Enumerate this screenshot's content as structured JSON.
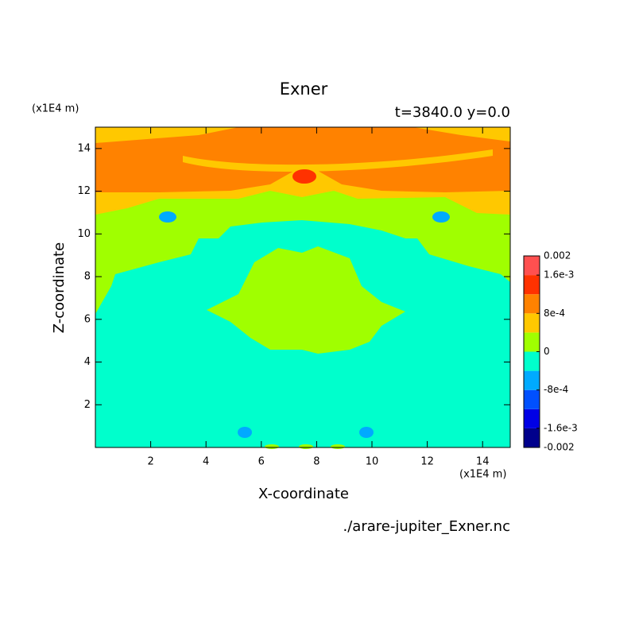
{
  "chart_data": {
    "type": "contour",
    "title": "Exner",
    "subtitle": "t=3840.0 y=0.0",
    "x_label": "X-coordinate",
    "y_label": "Z-coordinate",
    "x_unit": "(x1E4 m)",
    "y_unit": "(x1E4 m)",
    "source": "./arare-jupiter_Exner.nc",
    "xlim": [
      0,
      15
    ],
    "ylim": [
      0,
      15
    ],
    "xticks": [
      2,
      4,
      6,
      8,
      10,
      12,
      14
    ],
    "yticks": [
      2,
      4,
      6,
      8,
      10,
      12,
      14
    ],
    "colorbar": {
      "levels": [
        -0.002,
        -0.0016,
        -0.0012,
        -0.0008,
        -0.0004,
        0,
        0.0004,
        0.0008,
        0.0012,
        0.0016,
        0.002
      ],
      "colors": [
        "#00008c",
        "#0000e6",
        "#0050ff",
        "#00aaff",
        "#00ffcc",
        "#a0ff00",
        "#ffc800",
        "#ff8200",
        "#ff3200",
        "#ff5050"
      ],
      "ticks": [
        0.002,
        {
          "value": 0.0016,
          "label": "1.6e-3"
        },
        {
          "value": 0.0008,
          "label": "8e-4"
        },
        0,
        {
          "value": -0.0008,
          "label": "-8e-4"
        },
        {
          "value": -0.0016,
          "label": "-1.6e-3"
        },
        -0.002
      ]
    }
  }
}
